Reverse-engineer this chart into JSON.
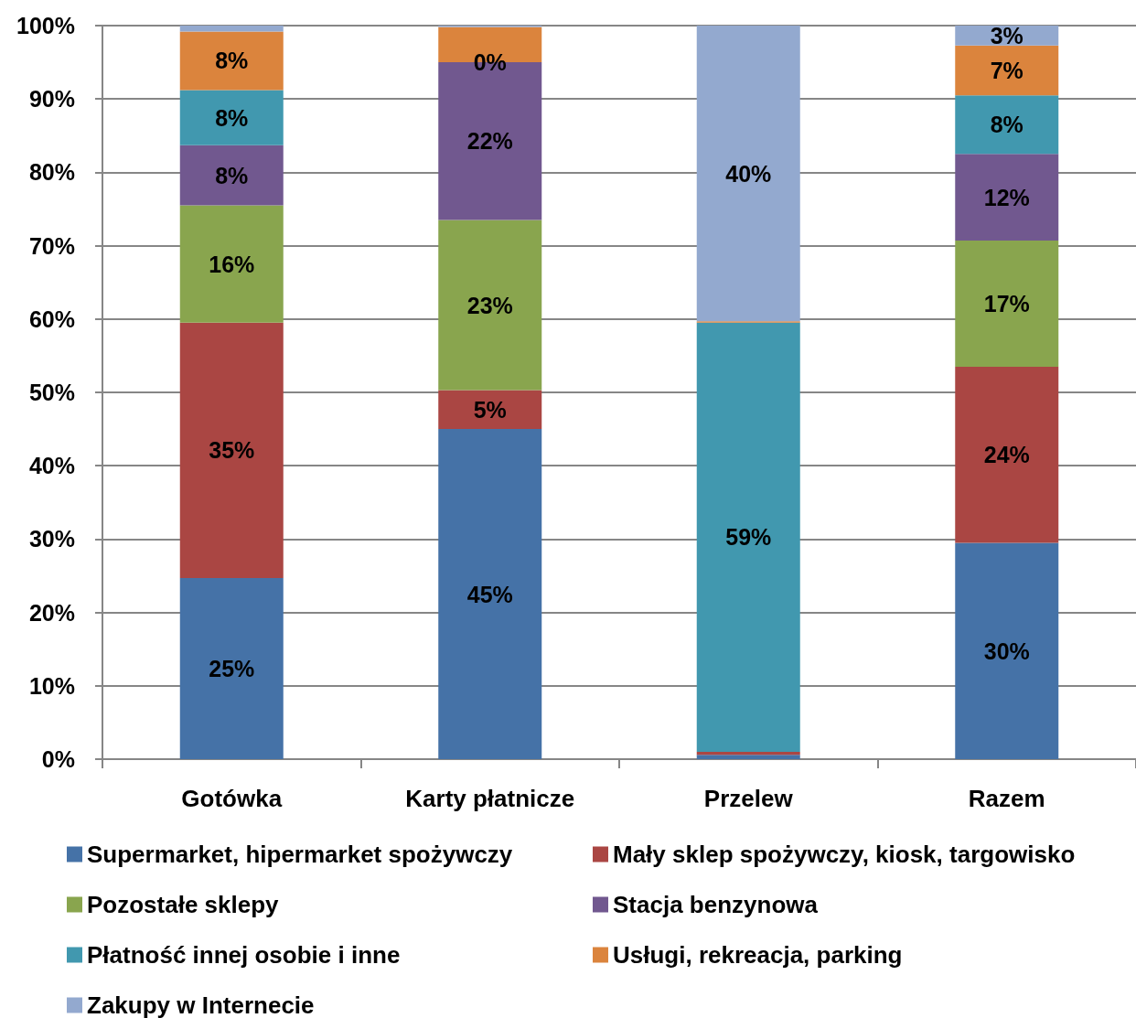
{
  "chart_data": {
    "type": "bar",
    "stacked": true,
    "categories": [
      "Gotówka",
      "Karty płatnicze",
      "Przelew",
      "Razem"
    ],
    "series": [
      {
        "name": "Supermarket, hipermarket spożywczy",
        "color": "#4572a7",
        "values": [
          24.7,
          45,
          0.6,
          29.5
        ],
        "value_labels": [
          "25%",
          "45%",
          null,
          "30%"
        ]
      },
      {
        "name": "Mały sklep spożywczy, kiosk, targowisko",
        "color": "#aa4643",
        "values": [
          34.8,
          5.3,
          0.4,
          24
        ],
        "value_labels": [
          "35%",
          "5%",
          null,
          "24%"
        ]
      },
      {
        "name": "Pozostałe sklepy",
        "color": "#89a54e",
        "values": [
          16,
          23.2,
          0,
          17.2
        ],
        "value_labels": [
          "16%",
          "23%",
          null,
          "17%"
        ]
      },
      {
        "name": "Stacja benzynowa",
        "color": "#71588f",
        "values": [
          8.2,
          21.5,
          0,
          11.8
        ],
        "value_labels": [
          "8%",
          "22%",
          null,
          "12%"
        ]
      },
      {
        "name": "Płatność innej osobie i inne",
        "color": "#4198af",
        "values": [
          7.5,
          0,
          58.5,
          8
        ],
        "value_labels": [
          "8%",
          "0%",
          "59%",
          "8%"
        ]
      },
      {
        "name": "Usługi, rekreacja, parking",
        "color": "#db843d",
        "values": [
          8,
          4.8,
          0.2,
          6.8
        ],
        "value_labels": [
          "8%",
          null,
          null,
          "7%"
        ]
      },
      {
        "name": "Zakupy w Internecie",
        "color": "#93a9cf",
        "values": [
          0.8,
          0.2,
          40.3,
          2.7
        ],
        "value_labels": [
          null,
          null,
          "40%",
          "3%"
        ]
      }
    ],
    "ylim": [
      0,
      100
    ],
    "yticks": [
      {
        "value": 0,
        "label": "0%"
      },
      {
        "value": 10,
        "label": "10%"
      },
      {
        "value": 20,
        "label": "20%"
      },
      {
        "value": 30,
        "label": "30%"
      },
      {
        "value": 40,
        "label": "40%"
      },
      {
        "value": 50,
        "label": "50%"
      },
      {
        "value": 60,
        "label": "60%"
      },
      {
        "value": 70,
        "label": "70%"
      },
      {
        "value": 80,
        "label": "80%"
      },
      {
        "value": 90,
        "label": "90%"
      },
      {
        "value": 100,
        "label": "100%"
      }
    ],
    "grid": "y",
    "legend": "bottom"
  }
}
